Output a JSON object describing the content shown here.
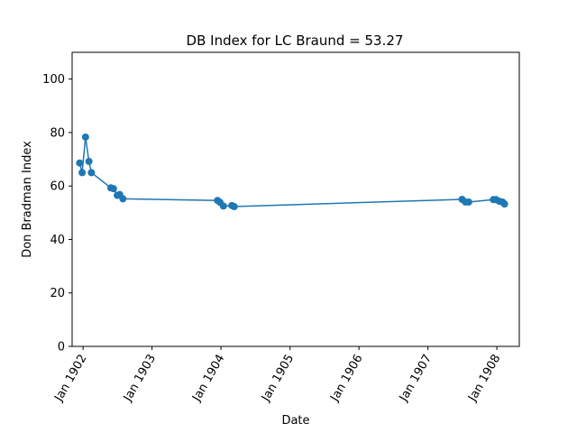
{
  "chart_data": {
    "type": "line",
    "title": "DB Index for LC Braund = 53.27",
    "xlabel": "Date",
    "ylabel": "Don Bradman Index",
    "ylim": [
      0,
      110
    ],
    "xlim": [
      "1901-11-04",
      "1908-04-29"
    ],
    "grid": false,
    "marker": "circle",
    "color": "#1f77b4",
    "yticks": [
      0,
      20,
      40,
      60,
      80,
      100
    ],
    "xticks": [
      {
        "date": "1902-01-01",
        "label": "Jan 1902"
      },
      {
        "date": "1903-01-01",
        "label": "Jan 1903"
      },
      {
        "date": "1904-01-01",
        "label": "Jan 1904"
      },
      {
        "date": "1905-01-01",
        "label": "Jan 1905"
      },
      {
        "date": "1906-01-01",
        "label": "Jan 1906"
      },
      {
        "date": "1907-01-01",
        "label": "Jan 1907"
      },
      {
        "date": "1908-01-01",
        "label": "Jan 1908"
      }
    ],
    "series": [
      {
        "x": [
          "1901-12-14",
          "1901-12-27",
          "1902-01-14",
          "1902-02-01",
          "1902-02-14",
          "1902-05-28",
          "1902-06-11",
          "1902-07-01",
          "1902-07-14",
          "1902-07-31",
          "1903-12-14",
          "1903-12-27",
          "1904-01-14",
          "1904-02-28",
          "1904-03-11",
          "1907-07-01",
          "1907-07-19",
          "1907-08-05",
          "1907-12-14",
          "1907-12-28",
          "1908-01-14",
          "1908-01-31",
          "1908-02-11"
        ],
        "y": [
          68.6,
          65.0,
          78.3,
          69.2,
          65.0,
          59.3,
          59.0,
          56.5,
          56.8,
          55.2,
          54.6,
          53.9,
          52.5,
          52.7,
          52.3,
          55.0,
          54.0,
          54.0,
          54.9,
          54.9,
          54.3,
          54.0,
          53.27
        ]
      }
    ]
  }
}
